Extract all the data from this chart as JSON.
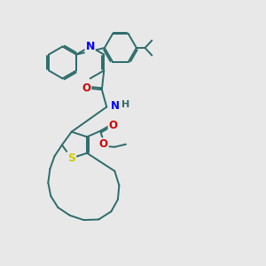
{
  "bg_color": "#e8e8e8",
  "bond_color": "#2d6b6b",
  "n_color": "#0000ff",
  "o_color": "#cc0000",
  "s_color": "#cccc00",
  "line_width": 1.4,
  "font_size": 8.5,
  "xlim": [
    0,
    10
  ],
  "ylim": [
    0,
    10
  ]
}
